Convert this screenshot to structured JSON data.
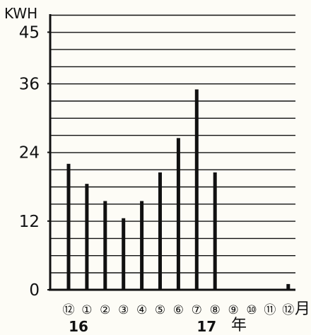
{
  "chart_data": {
    "type": "bar",
    "ylabel": "KWH",
    "yticks": [
      "0",
      "12",
      "24",
      "36",
      "45"
    ],
    "ylim": [
      0,
      48
    ],
    "grid": true,
    "categories": [
      "⑫",
      "①",
      "②",
      "③",
      "④",
      "⑤",
      "⑥",
      "⑦",
      "⑧",
      "⑨",
      "⑩",
      "⑪",
      "⑫"
    ],
    "values": [
      22,
      18.5,
      15.5,
      12.5,
      15.5,
      20.5,
      26.5,
      35,
      20.5,
      0,
      0,
      0,
      1
    ],
    "month_unit": "月",
    "year_labels": [
      {
        "text": "16",
        "category_index": 0
      },
      {
        "text": "17",
        "category_index": 7
      }
    ],
    "year_unit": "年",
    "colors": {
      "bar": "#111111",
      "grid": "#111111",
      "background": "#fdfcf6"
    }
  }
}
